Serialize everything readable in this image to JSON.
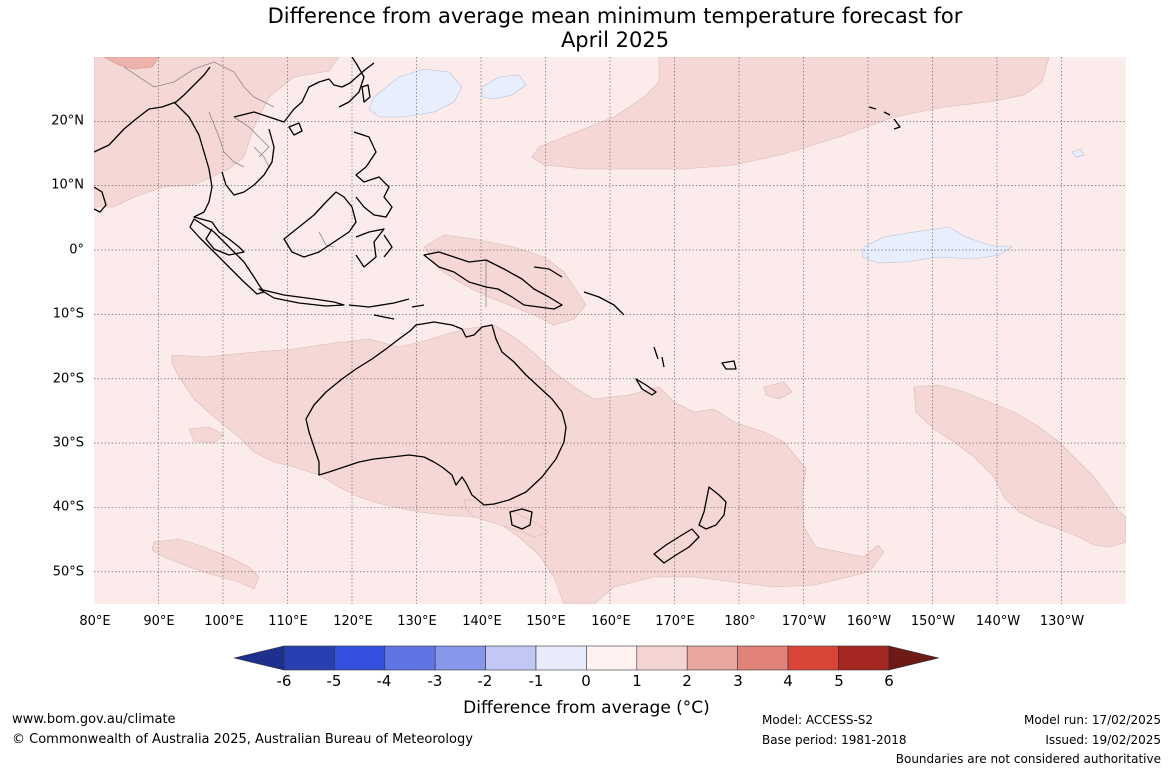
{
  "title": {
    "line1": "Difference from average mean minimum temperature forecast for",
    "line2": "April 2025"
  },
  "map": {
    "lat_labels": [
      "20°N",
      "10°N",
      "0°",
      "10°S",
      "20°S",
      "30°S",
      "40°S",
      "50°S"
    ],
    "lon_labels": [
      "80°E",
      "90°E",
      "100°E",
      "110°E",
      "120°E",
      "130°E",
      "140°E",
      "150°E",
      "160°E",
      "170°E",
      "180°",
      "170°W",
      "160°W",
      "150°W",
      "140°W",
      "130°W"
    ],
    "extent": {
      "lon_min": 80,
      "lon_max": 240,
      "lat_min": -55,
      "lat_max": 30
    },
    "colors": {
      "background_anomaly_0_1": "#fbeceb",
      "anomaly_1_2": "#f5d7d5",
      "anomaly_2_3": "#eeb2ad",
      "anomaly_neg1_0": "#e8eefc",
      "coast": "#000000",
      "border": "#888888",
      "grid": "#555555"
    }
  },
  "colorbar": {
    "ticks": [
      "-6",
      "-5",
      "-4",
      "-3",
      "-2",
      "-1",
      "0",
      "1",
      "2",
      "3",
      "4",
      "5",
      "6"
    ],
    "colors": [
      "#1f2f8e",
      "#273fb0",
      "#3550de",
      "#5f75e6",
      "#8797ea",
      "#c1c8f3",
      "#e8ebfb",
      "#fdf2f0",
      "#f4d4d1",
      "#e9a69f",
      "#e2837a",
      "#d94638",
      "#a52722",
      "#6e1a16"
    ],
    "label": "Difference from average (°C)"
  },
  "footer": {
    "website": "www.bom.gov.au/climate",
    "copyright": "© Commonwealth of Australia 2025, Australian Bureau of Meteorology",
    "model": "Model: ACCESS-S2",
    "base_period": "Base period: 1981-2018",
    "model_run": "Model run: 17/02/2025",
    "issued": "Issued: 19/02/2025",
    "disclaimer": "Boundaries are not considered authoritative"
  }
}
